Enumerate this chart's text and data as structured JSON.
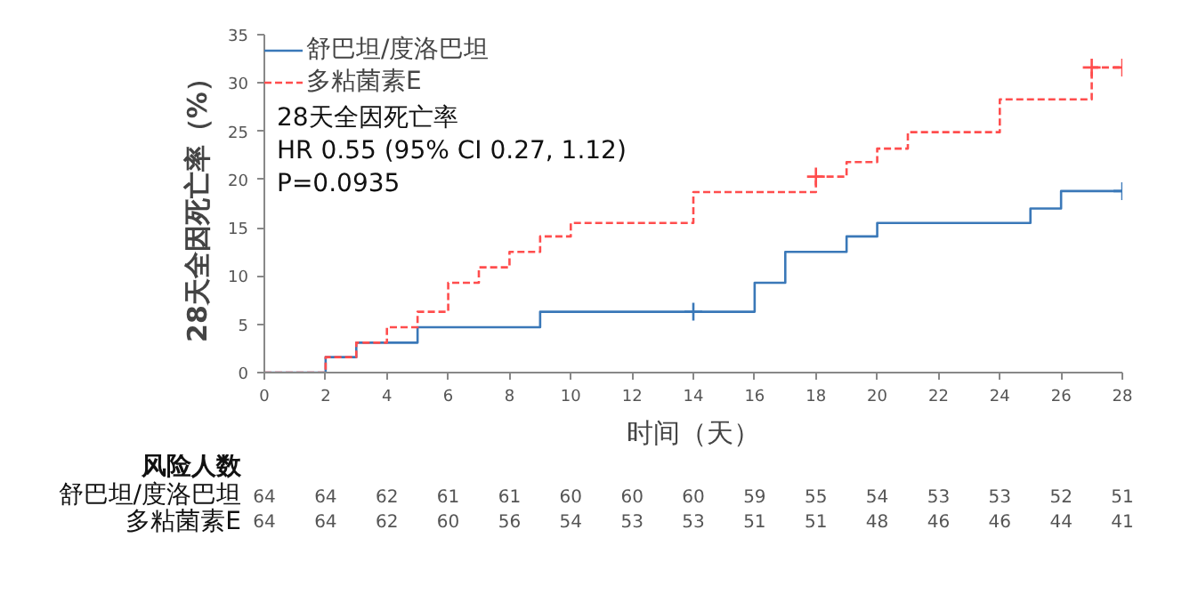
{
  "chart_data": {
    "type": "step",
    "xlabel": "时间（天）",
    "ylabel": "28天全因死亡率（%）",
    "xlim": [
      0,
      28
    ],
    "ylim": [
      0,
      35
    ],
    "xticks": [
      0,
      2,
      4,
      6,
      8,
      10,
      12,
      14,
      16,
      18,
      20,
      22,
      24,
      26,
      28
    ],
    "yticks": [
      0,
      5,
      10,
      15,
      20,
      25,
      30,
      35
    ],
    "grid": false,
    "legend": "top left",
    "series": [
      {
        "name": "舒巴坦/度洛巴坦",
        "color": "#3a78b8",
        "line_style": "solid",
        "x": [
          0,
          2,
          3,
          5,
          9,
          16,
          17,
          19,
          20,
          25,
          26,
          28
        ],
        "values": [
          0,
          1.6,
          3.1,
          4.7,
          6.3,
          9.3,
          12.5,
          14.1,
          15.5,
          17.0,
          18.8,
          18.8
        ]
      },
      {
        "name": "多粘菌素E",
        "color": "#ff4d4d",
        "line_style": "dashed",
        "x": [
          0,
          2,
          3,
          4,
          5,
          6,
          7,
          8,
          9,
          10,
          14,
          18,
          19,
          20,
          21,
          24,
          27,
          28
        ],
        "values": [
          0,
          1.6,
          3.1,
          4.7,
          6.3,
          9.3,
          10.9,
          12.5,
          14.1,
          15.5,
          18.7,
          20.3,
          21.8,
          23.2,
          24.9,
          28.3,
          31.6,
          31.6
        ]
      },
      {
        "type": "scatter",
        "marker": "cross",
        "color": "#3a78b8",
        "x": [
          14,
          28
        ],
        "values": [
          6.3,
          18.8
        ]
      },
      {
        "type": "scatter",
        "marker": "cross",
        "color": "#ff4d4d",
        "x": [
          18,
          27,
          28
        ],
        "values": [
          20.3,
          31.6,
          31.6
        ]
      }
    ],
    "annotations": [
      "28天全因死亡率",
      "HR 0.55 (95% CI 0.27, 1.12)",
      "P=0.0935",
      "风险人数",
      "舒巴坦/度洛巴坦",
      "多粘菌素E",
      "64 64 62 61 61 60 60 60 59 55 54 53 53 52 51",
      "64 64 62 60 56 54 53 53 51 51 48 46 46 44 41"
    ]
  }
}
